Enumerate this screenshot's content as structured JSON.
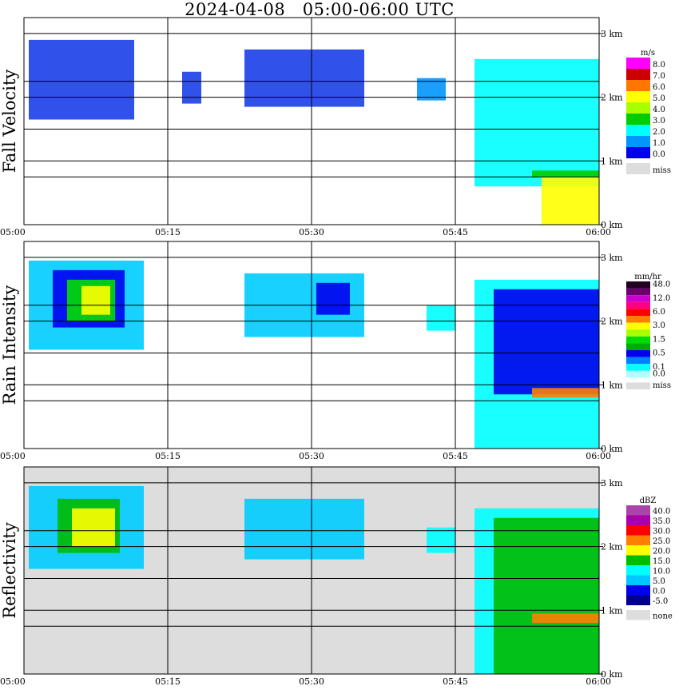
{
  "title": "2024-04-08   05:00-06:00 UTC",
  "chart_data": [
    {
      "type": "heatmap",
      "title": "Fall Velocity",
      "ylabel": "Fall Velocity",
      "xlabel": "",
      "x_ticks": [
        "05:00",
        "05:15",
        "05:30",
        "05:45",
        "06:00"
      ],
      "y_ticks": [
        "0 km",
        "1 km",
        "2 km",
        "3 km"
      ],
      "ylim": [
        0,
        3.25
      ],
      "unit": "m/s",
      "legend": [
        {
          "label": "8.0",
          "color": "#ff00ff"
        },
        {
          "label": "7.0",
          "color": "#cc0000"
        },
        {
          "label": "6.0",
          "color": "#ff7700"
        },
        {
          "label": "5.0",
          "color": "#ffff00"
        },
        {
          "label": "4.0",
          "color": "#a8ff00"
        },
        {
          "label": "3.0",
          "color": "#00cc00"
        },
        {
          "label": "2.0",
          "color": "#00ffff"
        },
        {
          "label": "1.0",
          "color": "#0096ff"
        },
        {
          "label": "0.0",
          "color": "#0000ee"
        },
        {
          "label": "miss",
          "color": "#dddddd"
        }
      ],
      "regions": [
        {
          "t0": 0.5,
          "t1": 11.5,
          "h0": 1.65,
          "h1": 2.9,
          "color": "#1a3fe8"
        },
        {
          "t0": 16.5,
          "t1": 18.5,
          "h0": 1.9,
          "h1": 2.4,
          "color": "#1a3fe8"
        },
        {
          "t0": 23.0,
          "t1": 35.5,
          "h0": 1.85,
          "h1": 2.75,
          "color": "#1a3fe8"
        },
        {
          "t0": 41.0,
          "t1": 44.0,
          "h0": 1.95,
          "h1": 2.3,
          "color": "#0096ff"
        },
        {
          "t0": 47.0,
          "t1": 60.0,
          "h0": 0.6,
          "h1": 2.6,
          "color": "#00ffff"
        },
        {
          "t0": 54.0,
          "t1": 60.0,
          "h0": 0.0,
          "h1": 0.75,
          "color": "#ffff00"
        },
        {
          "t0": 53.0,
          "t1": 60.0,
          "h0": 0.75,
          "h1": 0.85,
          "color": "#00cc00"
        }
      ]
    },
    {
      "type": "heatmap",
      "title": "Rain Intensity",
      "ylabel": "Rain Intensity",
      "xlabel": "",
      "x_ticks": [
        "05:00",
        "05:15",
        "05:30",
        "05:45",
        "06:00"
      ],
      "y_ticks": [
        "0 km",
        "1 km",
        "2 km",
        "3 km"
      ],
      "ylim": [
        0,
        3.25
      ],
      "unit": "mm/hr",
      "legend": [
        {
          "label": "48.0",
          "color": "#220022"
        },
        {
          "label": "",
          "color": "#6a006a"
        },
        {
          "label": "12.0",
          "color": "#cc00cc"
        },
        {
          "label": "",
          "color": "#ff0080"
        },
        {
          "label": "6.0",
          "color": "#ff0000"
        },
        {
          "label": "",
          "color": "#ff8000"
        },
        {
          "label": "3.0",
          "color": "#ffff00"
        },
        {
          "label": "",
          "color": "#a8ff00"
        },
        {
          "label": "1.5",
          "color": "#00dd00"
        },
        {
          "label": "",
          "color": "#00aa00"
        },
        {
          "label": "0.5",
          "color": "#0000ee"
        },
        {
          "label": "",
          "color": "#0080ff"
        },
        {
          "label": "0.1",
          "color": "#00ffff"
        },
        {
          "label": "0.0",
          "color": "#b0ffff"
        },
        {
          "label": "miss",
          "color": "#dddddd"
        }
      ],
      "regions": [
        {
          "t0": 0.5,
          "t1": 12.5,
          "h0": 1.55,
          "h1": 2.95,
          "color": "#00ccff"
        },
        {
          "t0": 3.0,
          "t1": 10.5,
          "h0": 1.9,
          "h1": 2.8,
          "color": "#0000ee"
        },
        {
          "t0": 4.5,
          "t1": 9.5,
          "h0": 2.0,
          "h1": 2.65,
          "color": "#00dd00"
        },
        {
          "t0": 6.0,
          "t1": 9.0,
          "h0": 2.1,
          "h1": 2.55,
          "color": "#ffff00"
        },
        {
          "t0": 23.0,
          "t1": 35.5,
          "h0": 1.75,
          "h1": 2.75,
          "color": "#00ccff"
        },
        {
          "t0": 30.5,
          "t1": 34.0,
          "h0": 2.1,
          "h1": 2.6,
          "color": "#0000ee"
        },
        {
          "t0": 42.0,
          "t1": 45.0,
          "h0": 1.85,
          "h1": 2.25,
          "color": "#00ffff"
        },
        {
          "t0": 47.0,
          "t1": 60.0,
          "h0": 0.0,
          "h1": 2.65,
          "color": "#00ffff"
        },
        {
          "t0": 49.0,
          "t1": 60.0,
          "h0": 0.85,
          "h1": 2.5,
          "color": "#0000ee"
        },
        {
          "t0": 53.0,
          "t1": 60.0,
          "h0": 0.8,
          "h1": 0.95,
          "color": "#ff8000"
        }
      ]
    },
    {
      "type": "heatmap",
      "title": "Reflectivity",
      "ylabel": "Reflectivity",
      "xlabel": "",
      "x_ticks": [
        "05:00",
        "05:15",
        "05:30",
        "05:45",
        "06:00"
      ],
      "y_ticks": [
        "0 km",
        "1 km",
        "2 km",
        "3 km"
      ],
      "ylim": [
        0,
        3.25
      ],
      "unit": "dBZ",
      "legend": [
        {
          "label": "40.0",
          "color": "#aa44aa"
        },
        {
          "label": "35.0",
          "color": "#aa00aa"
        },
        {
          "label": "30.0",
          "color": "#ff0000"
        },
        {
          "label": "25.0",
          "color": "#ff8000"
        },
        {
          "label": "20.0",
          "color": "#ffff00"
        },
        {
          "label": "15.0",
          "color": "#00bb00"
        },
        {
          "label": "10.0",
          "color": "#00ffff"
        },
        {
          "label": "5.0",
          "color": "#00c8ff"
        },
        {
          "label": "0.0",
          "color": "#0000ee"
        },
        {
          "label": "-5.0",
          "color": "#00008b"
        },
        {
          "label": "none",
          "color": "#dddddd"
        }
      ],
      "regions": [
        {
          "t0": 0.5,
          "t1": 12.5,
          "h0": 1.65,
          "h1": 2.95,
          "color": "#00ccff"
        },
        {
          "t0": 3.5,
          "t1": 10.0,
          "h0": 1.9,
          "h1": 2.75,
          "color": "#00bb00"
        },
        {
          "t0": 5.0,
          "t1": 9.5,
          "h0": 2.0,
          "h1": 2.6,
          "color": "#ffff00"
        },
        {
          "t0": 23.0,
          "t1": 35.5,
          "h0": 1.8,
          "h1": 2.75,
          "color": "#00ccff"
        },
        {
          "t0": 42.0,
          "t1": 45.0,
          "h0": 1.9,
          "h1": 2.3,
          "color": "#00ffff"
        },
        {
          "t0": 47.0,
          "t1": 60.0,
          "h0": 0.0,
          "h1": 2.6,
          "color": "#00ffff"
        },
        {
          "t0": 49.0,
          "t1": 60.0,
          "h0": 0.0,
          "h1": 2.45,
          "color": "#00bb00"
        },
        {
          "t0": 53.0,
          "t1": 60.0,
          "h0": 0.8,
          "h1": 0.95,
          "color": "#ff8000"
        }
      ]
    }
  ]
}
